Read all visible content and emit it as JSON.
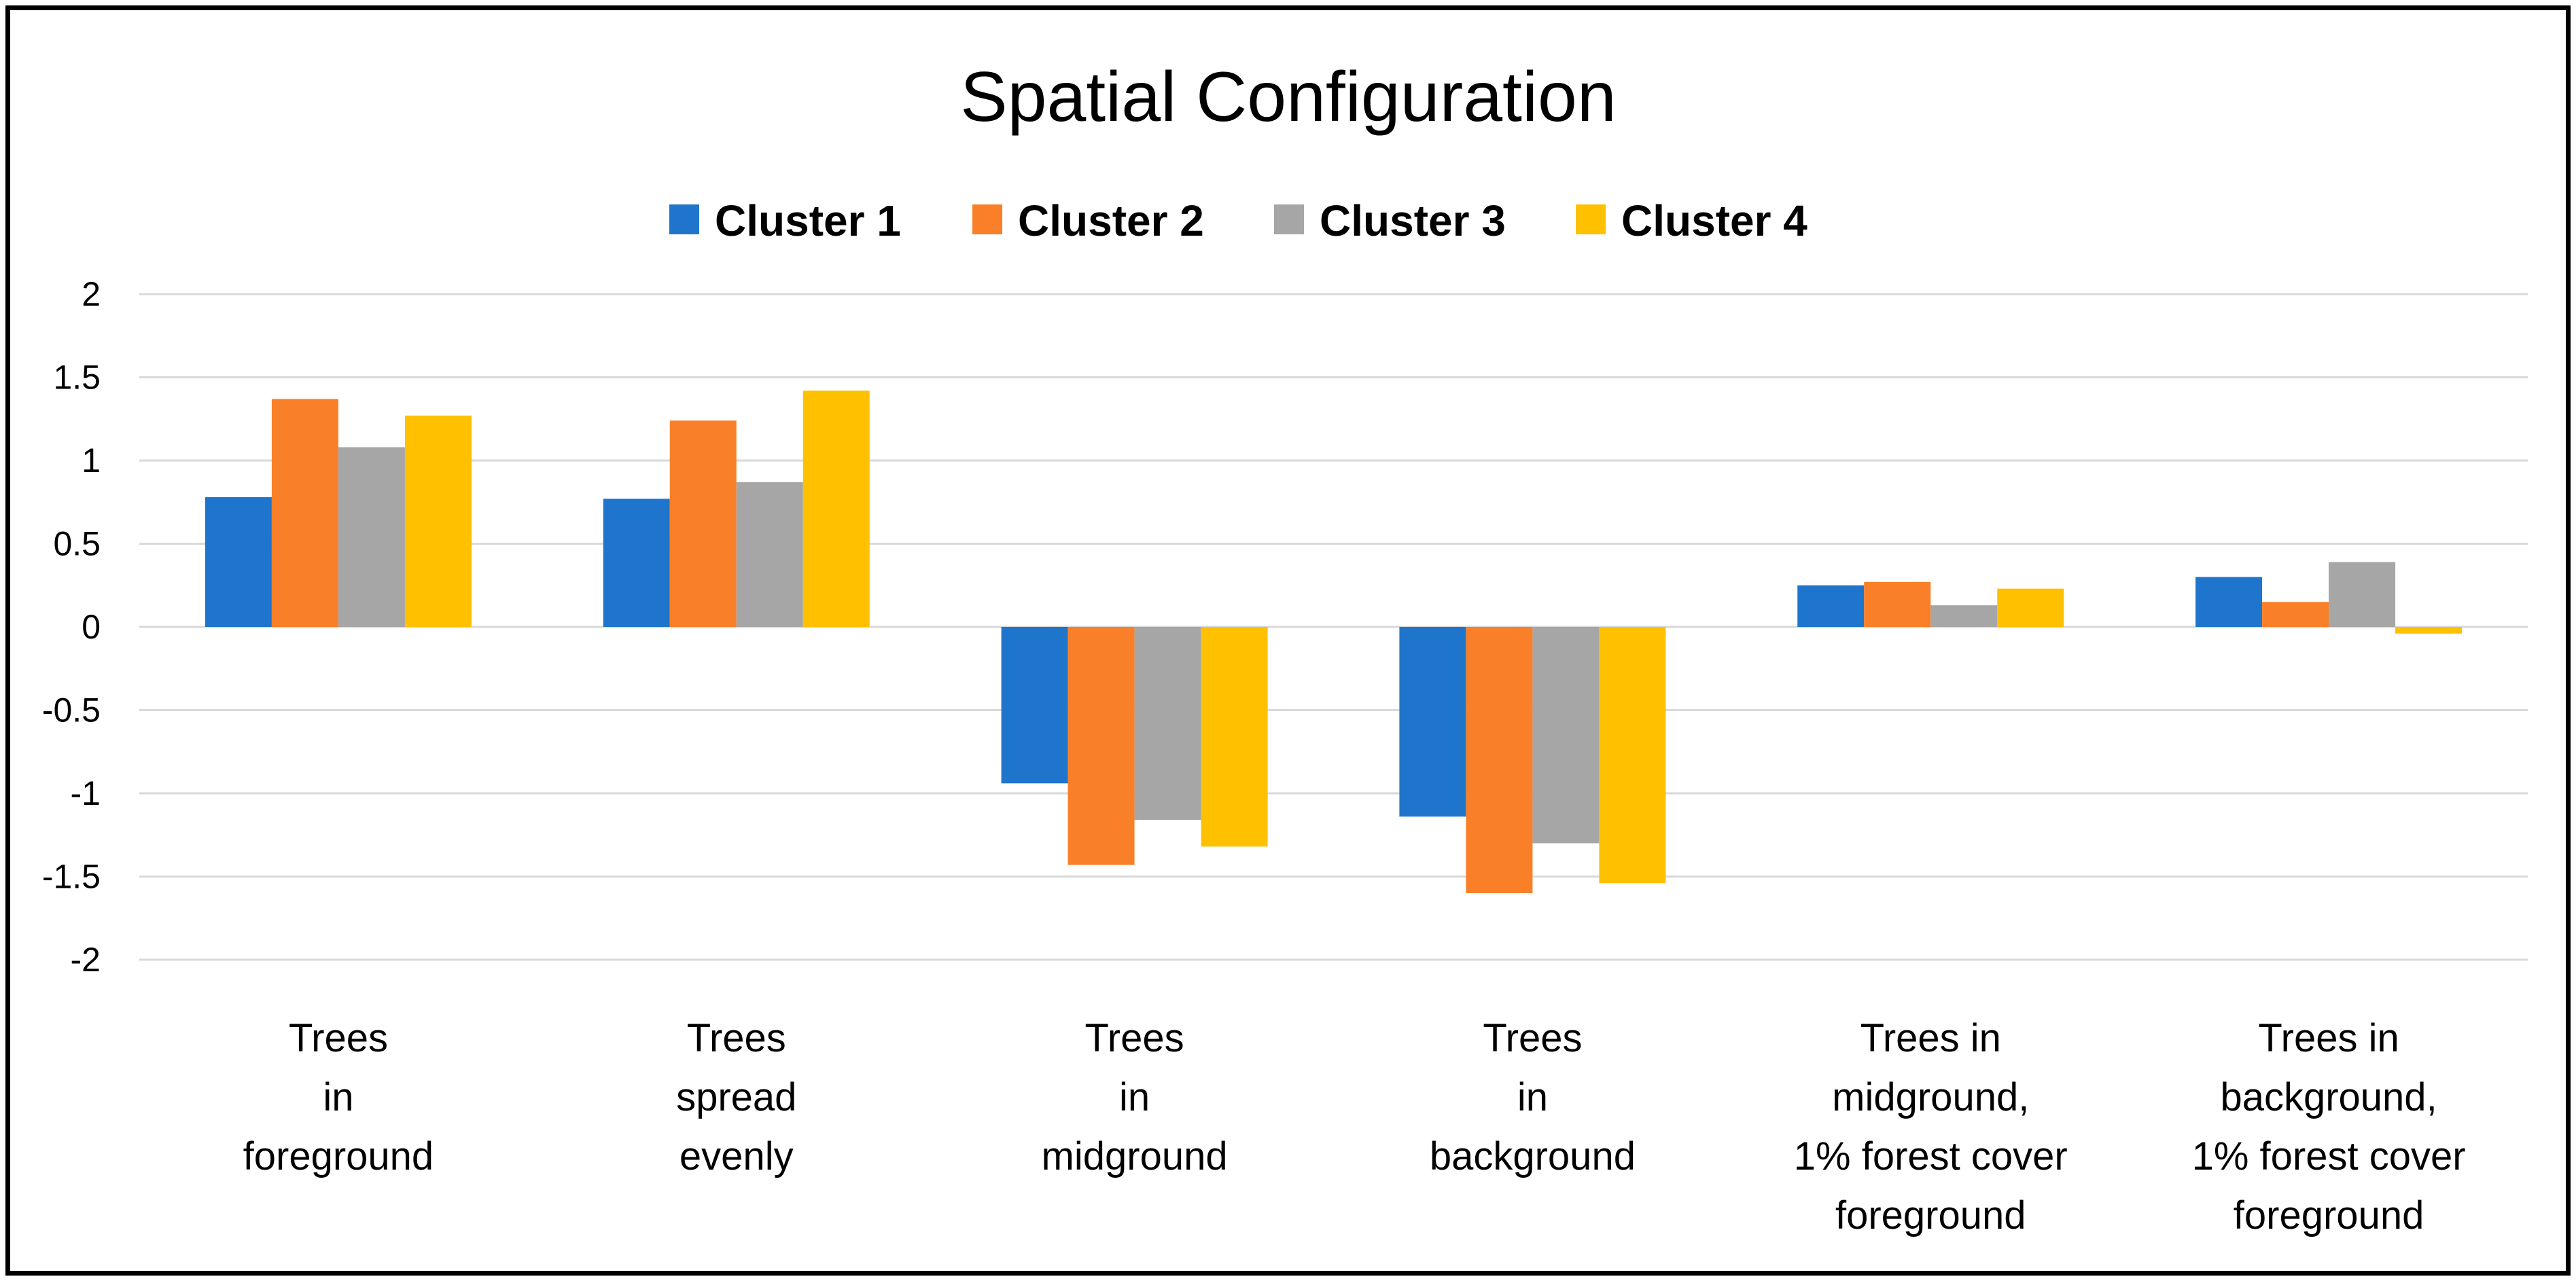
{
  "chart_data": {
    "type": "bar",
    "title": "Spatial Configuration",
    "xlabel": "",
    "ylabel": "",
    "ylim": [
      -2,
      2
    ],
    "yticks": [
      2,
      1.5,
      1,
      0.5,
      0,
      -0.5,
      -1,
      -1.5,
      -2
    ],
    "ytick_labels": [
      "2",
      "1.5",
      "1",
      "0.5",
      "0",
      "-0.5",
      "-1",
      "-1.5",
      "-2"
    ],
    "grid": true,
    "legend_position": "top-center",
    "categories": [
      [
        "Trees",
        "in",
        "foreground"
      ],
      [
        "Trees",
        "spread",
        "evenly"
      ],
      [
        "Trees",
        "in",
        "midground"
      ],
      [
        "Trees",
        "in",
        "background"
      ],
      [
        "Trees in",
        "midground,",
        "1% forest cover",
        "foreground"
      ],
      [
        "Trees in",
        "background,",
        "1% forest cover",
        "foreground"
      ]
    ],
    "series": [
      {
        "name": "Cluster 1",
        "color": "#1f74cc",
        "values": [
          0.78,
          0.77,
          -0.94,
          -1.14,
          0.25,
          0.3
        ]
      },
      {
        "name": "Cluster 2",
        "color": "#f98028",
        "values": [
          1.37,
          1.24,
          -1.43,
          -1.6,
          0.27,
          0.15
        ]
      },
      {
        "name": "Cluster 3",
        "color": "#a6a6a6",
        "values": [
          1.08,
          0.87,
          -1.16,
          -1.3,
          0.13,
          0.39
        ]
      },
      {
        "name": "Cluster 4",
        "color": "#ffc000",
        "values": [
          1.27,
          1.42,
          -1.32,
          -1.54,
          0.23,
          -0.04
        ]
      }
    ]
  }
}
